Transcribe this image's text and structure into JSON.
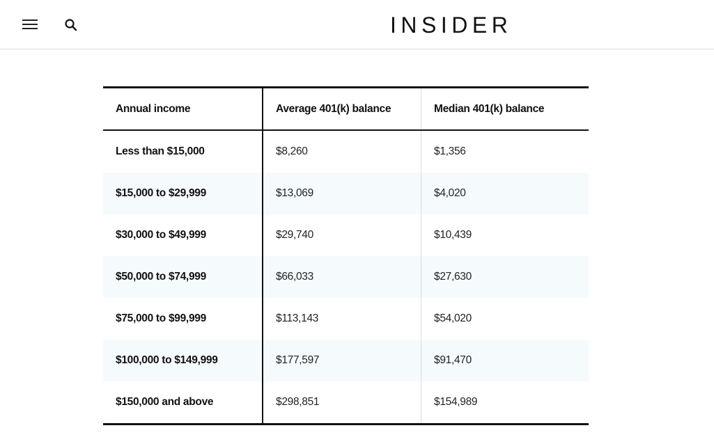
{
  "header": {
    "logo": "INSIDER",
    "menu_icon": "hamburger-menu-icon",
    "search_icon": "search-icon"
  },
  "table": {
    "columns": [
      "Annual income",
      "Average 401(k) balance",
      "Median 401(k) balance"
    ],
    "rows": [
      {
        "income": "Less than $15,000",
        "average": "$8,260",
        "median": "$1,356"
      },
      {
        "income": "$15,000 to $29,999",
        "average": "$13,069",
        "median": "$4,020"
      },
      {
        "income": "$30,000 to $49,999",
        "average": "$29,740",
        "median": "$10,439"
      },
      {
        "income": "$50,000 to $74,999",
        "average": "$66,033",
        "median": "$27,630"
      },
      {
        "income": "$75,000 to $99,999",
        "average": "$113,143",
        "median": "$54,020"
      },
      {
        "income": "$100,000 to $149,999",
        "average": "$177,597",
        "median": "$91,470"
      },
      {
        "income": "$150,000 and above",
        "average": "$298,851",
        "median": "$154,989"
      }
    ]
  }
}
